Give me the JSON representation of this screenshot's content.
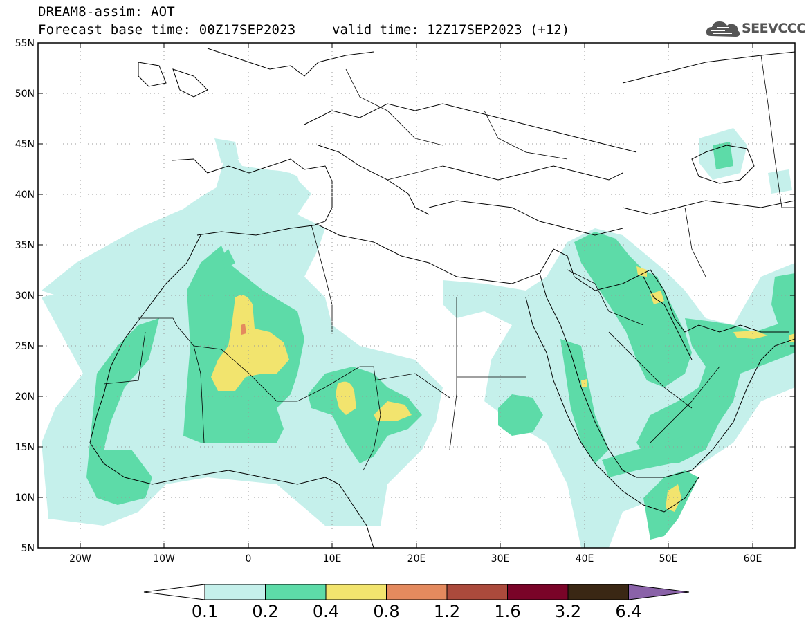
{
  "title": {
    "line1": "DREAM8-assim: AOT",
    "line2": "Forecast base time: 00Z17SEP2023",
    "valid": "valid time: 12Z17SEP2023 (+12)"
  },
  "logo": {
    "text": "SEEVCCC",
    "icon": "cloud-icon"
  },
  "axes": {
    "lat_labels": [
      "55N",
      "50N",
      "45N",
      "40N",
      "35N",
      "30N",
      "25N",
      "20N",
      "15N",
      "10N",
      "5N"
    ],
    "lon_labels": [
      "20W",
      "10W",
      "0",
      "10E",
      "20E",
      "30E",
      "40E",
      "50E",
      "60E"
    ]
  },
  "colorbar": {
    "labels": [
      "0.1",
      "0.2",
      "0.4",
      "0.8",
      "1.2",
      "1.6",
      "3.2",
      "6.4"
    ],
    "colors": [
      "#ffffff",
      "#c5f0eb",
      "#5ddba8",
      "#f2e46e",
      "#e48a5e",
      "#ab4a3c",
      "#7a0428",
      "#3a2714",
      "#8a62a8"
    ]
  }
}
